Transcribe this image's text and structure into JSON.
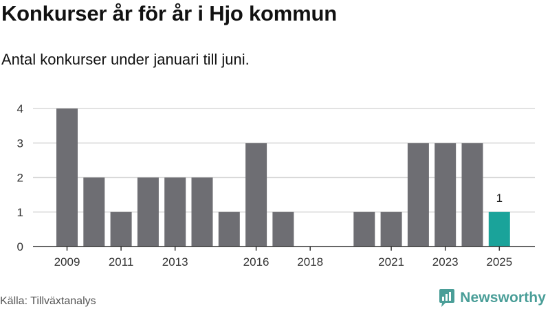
{
  "header": {
    "title": "Konkurser år för år i Hjo kommun",
    "subtitle": "Antal konkurser under januari till juni."
  },
  "footer": {
    "source": "Källa: Tillväxtanalys",
    "brand": "Newsworthy"
  },
  "colors": {
    "bar": "#6e6e73",
    "highlight": "#1aa39a",
    "grid": "#d9d9d9",
    "axis": "#333333",
    "brand": "#4a9e98"
  },
  "chart_data": {
    "type": "bar",
    "title": "Konkurser år för år i Hjo kommun",
    "subtitle": "Antal konkurser under januari till juni.",
    "xlabel": "",
    "ylabel": "",
    "categories": [
      "2009",
      "2010",
      "2011",
      "2012",
      "2013",
      "2014",
      "2015",
      "2016",
      "2017",
      "2018",
      "2019",
      "2020",
      "2021",
      "2022",
      "2023",
      "2024",
      "2025"
    ],
    "values": [
      4,
      2,
      1,
      2,
      2,
      2,
      1,
      3,
      1,
      0,
      0,
      1,
      1,
      3,
      3,
      3,
      1
    ],
    "highlight_category": "2025",
    "data_labels": [
      {
        "category": "2025",
        "text": "1"
      }
    ],
    "x_tick_labels": [
      "2009",
      "2011",
      "2013",
      "2016",
      "2018",
      "2021",
      "2023",
      "2025"
    ],
    "y_ticks": [
      0,
      1,
      2,
      3,
      4
    ],
    "ylim": [
      0,
      4
    ],
    "grid": true,
    "legend": "none"
  }
}
